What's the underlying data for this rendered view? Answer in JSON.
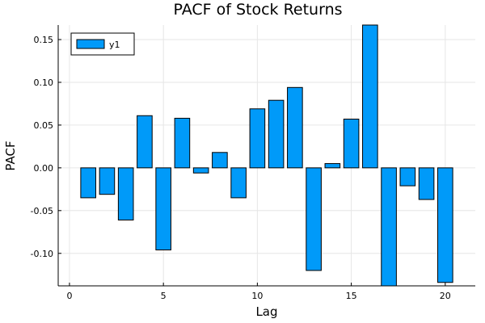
{
  "chart_data": {
    "type": "bar",
    "title": "PACF of Stock Returns",
    "xlabel": "Lag",
    "ylabel": "PACF",
    "x": [
      1,
      2,
      3,
      4,
      5,
      6,
      7,
      8,
      9,
      10,
      11,
      12,
      13,
      14,
      15,
      16,
      17,
      18,
      19,
      20
    ],
    "series": [
      {
        "name": "y1",
        "values": [
          -0.035,
          -0.031,
          -0.061,
          0.061,
          -0.096,
          0.058,
          -0.006,
          0.018,
          -0.035,
          0.069,
          0.079,
          0.094,
          -0.12,
          0.005,
          0.057,
          0.167,
          -0.145,
          -0.021,
          -0.037,
          -0.134
        ]
      }
    ],
    "xlim": [
      -0.6,
      21.6
    ],
    "ylim": [
      -0.138,
      0.167
    ],
    "xticks": [
      0,
      5,
      10,
      15,
      20
    ],
    "xtick_labels": [
      "0",
      "5",
      "10",
      "15",
      "20"
    ],
    "yticks": [
      -0.1,
      -0.05,
      0.0,
      0.05,
      0.1,
      0.15
    ],
    "ytick_labels": [
      "-0.10",
      "-0.05",
      "0.00",
      "0.05",
      "0.10",
      "0.15"
    ],
    "grid": true,
    "legend_position": "top-left",
    "colors": {
      "bar": "#009af9",
      "bar_edge": "#000000"
    }
  }
}
